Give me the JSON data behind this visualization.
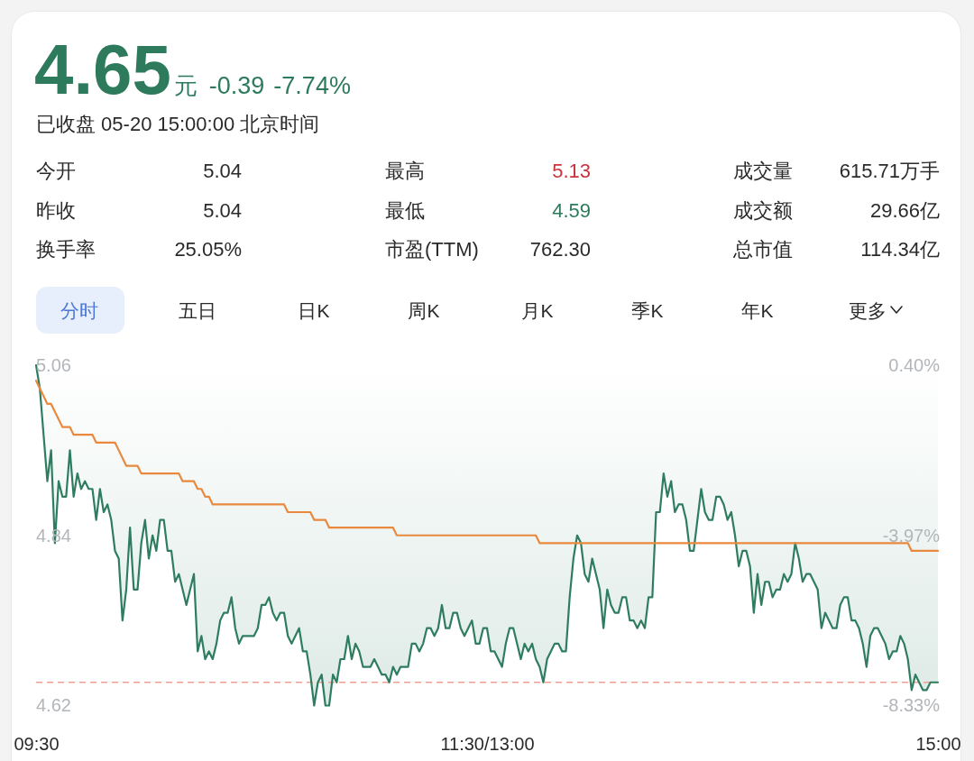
{
  "chart_data": {
    "type": "line",
    "title": "4.65",
    "subtitle": "已收盘 05-20 15:00:00 北京时间",
    "annotations": [
      "元",
      "-0.39",
      "-7.74%",
      "今开",
      "5.04",
      "最高",
      "5.13",
      "成交量",
      "615.71万手",
      "昨收",
      "5.04",
      "最低",
      "4.59",
      "成交额",
      "29.66亿",
      "换手率",
      "25.05%",
      "市盈(TTM)",
      "762.30",
      "总市值",
      "114.34亿",
      "分时",
      "五日",
      "日K",
      "周K",
      "月K",
      "季K",
      "年K",
      "更多"
    ],
    "categories": [
      "09:30",
      null,
      null,
      null,
      null,
      null,
      null,
      null,
      null,
      null,
      null,
      null,
      null,
      null,
      null,
      null,
      null,
      null,
      null,
      null,
      null,
      null,
      null,
      null,
      null,
      null,
      null,
      null,
      null,
      null,
      null,
      null,
      null,
      null,
      null,
      null,
      null,
      null,
      null,
      null,
      null,
      null,
      null,
      null,
      null,
      null,
      null,
      null,
      null,
      null,
      null,
      null,
      null,
      null,
      null,
      null,
      null,
      null,
      null,
      null,
      null,
      null,
      null,
      null,
      null,
      null,
      null,
      null,
      null,
      null,
      null,
      null,
      null,
      null,
      null,
      null,
      null,
      null,
      null,
      null,
      null,
      null,
      null,
      null,
      null,
      null,
      null,
      null,
      null,
      null,
      null,
      null,
      null,
      null,
      null,
      null,
      null,
      null,
      null,
      null,
      null,
      null,
      null,
      null,
      null,
      null,
      null,
      null,
      null,
      null,
      null,
      null,
      null,
      null,
      null,
      null,
      null,
      null,
      null,
      null,
      "11:30/13:00",
      null,
      null,
      null,
      null,
      null,
      null,
      null,
      null,
      null,
      null,
      null,
      null,
      null,
      null,
      null,
      null,
      null,
      null,
      null,
      null,
      null,
      null,
      null,
      null,
      null,
      null,
      null,
      null,
      null,
      null,
      null,
      null,
      null,
      null,
      null,
      null,
      null,
      null,
      null,
      null,
      null,
      null,
      null,
      null,
      null,
      null,
      null,
      null,
      null,
      null,
      null,
      null,
      null,
      null,
      null,
      null,
      null,
      null,
      null,
      null,
      null,
      null,
      null,
      null,
      null,
      null,
      null,
      null,
      null,
      null,
      null,
      null,
      null,
      null,
      null,
      null,
      null,
      null,
      null,
      null,
      null,
      null,
      null,
      null,
      null,
      null,
      null,
      null,
      null,
      null,
      null,
      null,
      null,
      null,
      null,
      null,
      null,
      null,
      null,
      null,
      null,
      null,
      null,
      null,
      null,
      null,
      null,
      null,
      null,
      null,
      null,
      null,
      null,
      null,
      null,
      null,
      null,
      null,
      null,
      "15:00"
    ],
    "series": [
      {
        "color": "#2f7d60",
        "values": [
          5.06,
          5.03,
          4.97,
          4.91,
          4.95,
          4.83,
          4.91,
          4.89,
          4.89,
          4.95,
          4.89,
          4.92,
          4.9,
          4.91,
          4.9,
          4.9,
          4.86,
          4.9,
          4.87,
          4.88,
          4.86,
          4.82,
          4.81,
          4.73,
          4.77,
          4.85,
          4.77,
          4.77,
          4.83,
          4.86,
          4.81,
          4.84,
          4.82,
          4.86,
          4.86,
          4.82,
          4.82,
          4.78,
          4.79,
          4.77,
          4.75,
          4.77,
          4.79,
          4.69,
          4.71,
          4.68,
          4.69,
          4.68,
          4.7,
          4.73,
          4.74,
          4.74,
          4.76,
          4.72,
          4.7,
          4.71,
          4.71,
          4.71,
          4.71,
          4.72,
          4.75,
          4.75,
          4.76,
          4.74,
          4.73,
          4.74,
          4.74,
          4.71,
          4.7,
          4.71,
          4.72,
          4.69,
          4.69,
          4.66,
          4.62,
          4.65,
          4.66,
          4.62,
          4.62,
          4.66,
          4.65,
          4.68,
          4.68,
          4.71,
          4.68,
          4.7,
          4.69,
          4.67,
          4.67,
          4.67,
          4.68,
          4.67,
          4.66,
          4.66,
          4.65,
          4.67,
          4.66,
          4.67,
          4.67,
          4.67,
          4.7,
          4.7,
          4.69,
          4.7,
          4.72,
          4.72,
          4.71,
          4.72,
          4.75,
          4.72,
          4.72,
          4.74,
          4.74,
          4.72,
          4.71,
          4.72,
          4.73,
          4.7,
          4.7,
          4.72,
          4.72,
          4.69,
          4.69,
          4.68,
          4.67,
          4.7,
          4.72,
          4.72,
          4.7,
          4.68,
          4.7,
          4.69,
          4.7,
          4.68,
          4.67,
          4.65,
          4.68,
          4.69,
          4.7,
          4.7,
          4.69,
          4.69,
          4.76,
          4.81,
          4.84,
          4.83,
          4.79,
          4.78,
          4.81,
          4.79,
          4.77,
          4.72,
          4.77,
          4.75,
          4.74,
          4.74,
          4.76,
          4.76,
          4.73,
          4.73,
          4.72,
          4.73,
          4.72,
          4.76,
          4.76,
          4.87,
          4.87,
          4.92,
          4.89,
          4.91,
          4.87,
          4.88,
          4.88,
          4.86,
          4.82,
          4.82,
          4.86,
          4.9,
          4.87,
          4.86,
          4.86,
          4.89,
          4.89,
          4.88,
          4.86,
          4.87,
          4.84,
          4.8,
          4.82,
          4.82,
          4.8,
          4.74,
          4.79,
          4.75,
          4.78,
          4.78,
          4.76,
          4.77,
          4.77,
          4.79,
          4.78,
          4.79,
          4.83,
          4.81,
          4.78,
          4.79,
          4.79,
          4.78,
          4.77,
          4.72,
          4.74,
          4.73,
          4.72,
          4.72,
          4.75,
          4.76,
          4.76,
          4.73,
          4.73,
          4.72,
          4.7,
          4.67,
          4.71,
          4.72,
          4.72,
          4.71,
          4.7,
          4.68,
          4.69,
          4.69,
          4.71,
          4.7,
          4.68,
          4.64,
          4.66,
          4.65,
          4.64,
          4.64,
          4.65,
          4.65,
          4.65
        ]
      },
      {
        "color": "#e8893e",
        "values": [
          5.04,
          5.03,
          5.02,
          5.01,
          5.01,
          5.0,
          4.99,
          4.98,
          4.98,
          4.98,
          4.97,
          4.97,
          4.97,
          4.97,
          4.97,
          4.97,
          4.96,
          4.96,
          4.96,
          4.96,
          4.96,
          4.96,
          4.95,
          4.94,
          4.93,
          4.93,
          4.93,
          4.93,
          4.92,
          4.92,
          4.92,
          4.92,
          4.92,
          4.92,
          4.92,
          4.92,
          4.92,
          4.92,
          4.92,
          4.91,
          4.91,
          4.91,
          4.91,
          4.9,
          4.9,
          4.89,
          4.89,
          4.88,
          4.88,
          4.88,
          4.88,
          4.88,
          4.88,
          4.88,
          4.88,
          4.88,
          4.88,
          4.88,
          4.88,
          4.88,
          4.88,
          4.88,
          4.88,
          4.88,
          4.88,
          4.88,
          4.88,
          4.87,
          4.87,
          4.87,
          4.87,
          4.87,
          4.87,
          4.87,
          4.86,
          4.86,
          4.86,
          4.86,
          4.85,
          4.85,
          4.85,
          4.85,
          4.85,
          4.85,
          4.85,
          4.85,
          4.85,
          4.85,
          4.85,
          4.85,
          4.85,
          4.85,
          4.85,
          4.85,
          4.85,
          4.85,
          4.84,
          4.84,
          4.84,
          4.84,
          4.84,
          4.84,
          4.84,
          4.84,
          4.84,
          4.84,
          4.84,
          4.84,
          4.84,
          4.84,
          4.84,
          4.84,
          4.84,
          4.84,
          4.84,
          4.84,
          4.84,
          4.84,
          4.84,
          4.84,
          4.84,
          4.84,
          4.84,
          4.84,
          4.84,
          4.84,
          4.84,
          4.84,
          4.84,
          4.84,
          4.84,
          4.84,
          4.84,
          4.84,
          4.83,
          4.83,
          4.83,
          4.83,
          4.83,
          4.83,
          4.83,
          4.83,
          4.83,
          4.83,
          4.83,
          4.83,
          4.83,
          4.83,
          4.83,
          4.83,
          4.83,
          4.83,
          4.83,
          4.83,
          4.83,
          4.83,
          4.83,
          4.83,
          4.83,
          4.83,
          4.83,
          4.83,
          4.83,
          4.83,
          4.83,
          4.83,
          4.83,
          4.83,
          4.83,
          4.83,
          4.83,
          4.83,
          4.83,
          4.83,
          4.83,
          4.83,
          4.83,
          4.83,
          4.83,
          4.83,
          4.83,
          4.83,
          4.83,
          4.83,
          4.83,
          4.83,
          4.83,
          4.83,
          4.83,
          4.83,
          4.83,
          4.83,
          4.83,
          4.83,
          4.83,
          4.83,
          4.83,
          4.83,
          4.83,
          4.83,
          4.83,
          4.83,
          4.83,
          4.83,
          4.83,
          4.83,
          4.83,
          4.83,
          4.83,
          4.83,
          4.83,
          4.83,
          4.83,
          4.83,
          4.83,
          4.83,
          4.83,
          4.83,
          4.83,
          4.83,
          4.83,
          4.83,
          4.83,
          4.83,
          4.83,
          4.83,
          4.83,
          4.83,
          4.83,
          4.83,
          4.83,
          4.83,
          4.83,
          4.82,
          4.82,
          4.82,
          4.82,
          4.82,
          4.82,
          4.82,
          4.82
        ]
      }
    ],
    "ylim": [
      4.62,
      5.06
    ],
    "yticks": [
      4.62,
      4.84,
      5.06
    ],
    "y2lim": [
      -8.33,
      0.4
    ],
    "y2ticks": [
      {
        "value": -8.33,
        "label": "-8.33%"
      },
      {
        "value": -3.97,
        "label": "-3.97%"
      },
      {
        "value": 0.4,
        "label": "0.40%"
      }
    ],
    "ref_lines": [
      {
        "axis": "y",
        "value": 4.65,
        "color": "#eea194",
        "line_style": "dashed"
      }
    ]
  }
}
